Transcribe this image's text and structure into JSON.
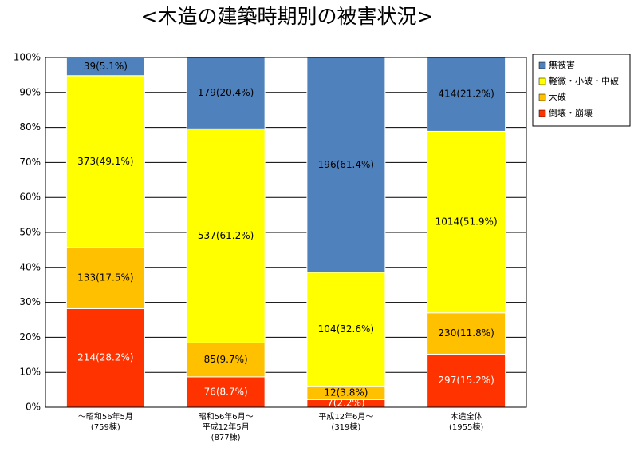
{
  "chart_data": {
    "type": "stacked_bar_100",
    "title": "<木造の建築時期別の被害状況>",
    "categories": [
      "～昭和56年5月\n(759棟)",
      "昭和56年6月～\n平成12年5月\n(877棟)",
      "平成12年6月～\n(319棟)",
      "木造全体\n(1955棟)"
    ],
    "series": [
      {
        "name": "倒壊・崩壊",
        "color": "#ff3300",
        "values": [
          28.2,
          8.7,
          2.2,
          15.2
        ],
        "value_labels": [
          "214(28.2%)",
          "76(8.7%)",
          "7(2.2%)",
          "297(15.2%)"
        ]
      },
      {
        "name": "大破",
        "color": "#ffc000",
        "values": [
          17.5,
          9.7,
          3.8,
          11.8
        ],
        "value_labels": [
          "133(17.5%)",
          "85(9.7%)",
          "12(3.8%)",
          "230(11.8%)"
        ]
      },
      {
        "name": "軽微・小破・中破",
        "color": "#ffff00",
        "values": [
          49.1,
          61.2,
          32.6,
          51.9
        ],
        "value_labels": [
          "373(49.1%)",
          "537(61.2%)",
          "104(32.6%)",
          "1014(51.9%)"
        ]
      },
      {
        "name": "無被害",
        "color": "#4f81bd",
        "values": [
          5.1,
          20.4,
          61.4,
          21.2
        ],
        "value_labels": [
          "39(5.1%)",
          "179(20.4%)",
          "196(61.4%)",
          "414(21.2%)"
        ]
      }
    ],
    "ylim": [
      0,
      100
    ],
    "yticks": [
      {
        "value": 0,
        "label": "0%"
      },
      {
        "value": 10,
        "label": "10%"
      },
      {
        "value": 20,
        "label": "20%"
      },
      {
        "value": 30,
        "label": "30%"
      },
      {
        "value": 40,
        "label": "40%"
      },
      {
        "value": 50,
        "label": "50%"
      },
      {
        "value": 60,
        "label": "60%"
      },
      {
        "value": 70,
        "label": "70%"
      },
      {
        "value": 80,
        "label": "80%"
      },
      {
        "value": 90,
        "label": "90%"
      },
      {
        "value": 100,
        "label": "100%"
      }
    ],
    "grid": true,
    "legend": "right"
  }
}
